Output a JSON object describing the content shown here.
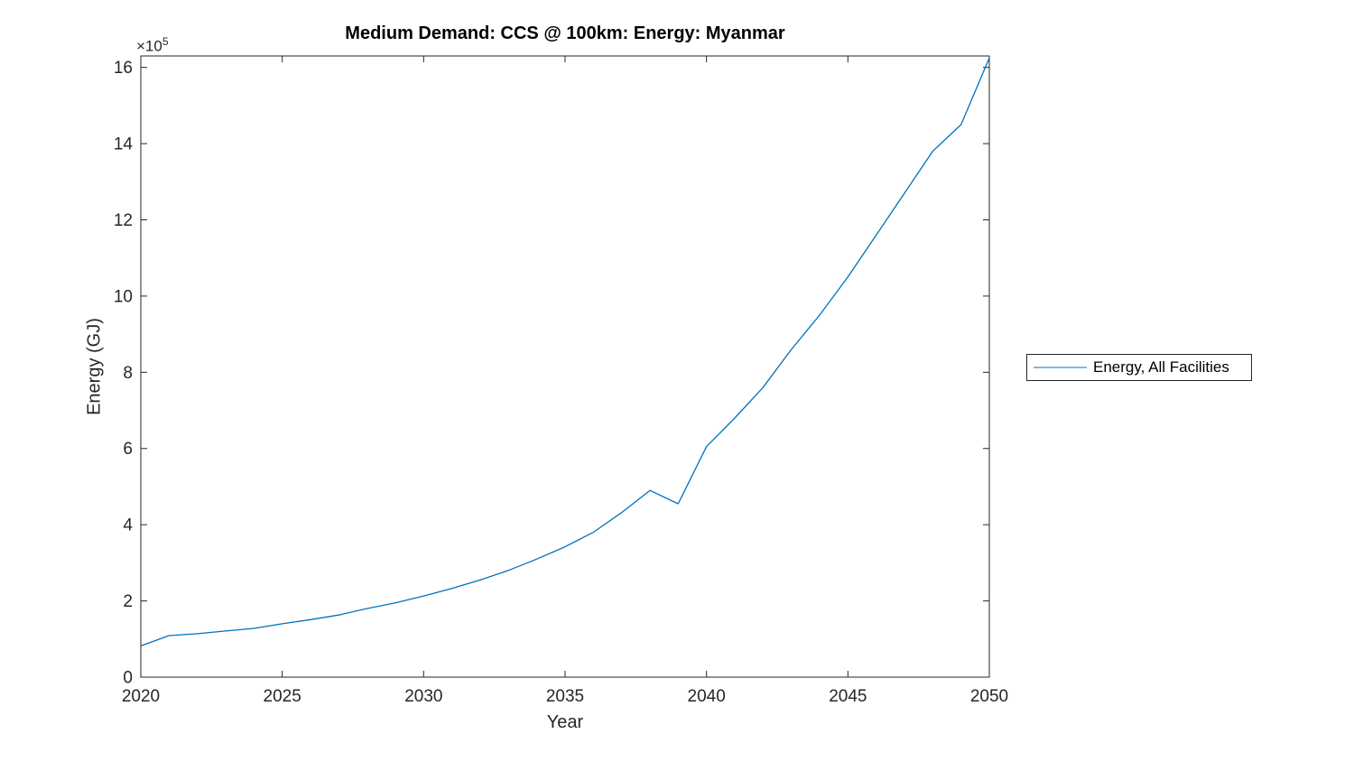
{
  "figure": {
    "title": "Medium Demand: CCS @ 100km: Energy: Myanmar",
    "xlabel": "Year",
    "ylabel": "Energy (GJ)",
    "y_multiplier_base": "×10",
    "y_multiplier_exponent": "5",
    "legend": {
      "entries": [
        {
          "label": "Energy, All Facilities",
          "color": "#0072BD"
        }
      ],
      "position": "right-outside"
    },
    "colors": {
      "line": "#0072BD",
      "axis": "#262626",
      "title_text": "#000000",
      "background": "#ffffff"
    }
  },
  "chart_data": {
    "type": "line",
    "title": "Medium Demand: CCS @ 100km: Energy: Myanmar",
    "xlabel": "Year",
    "ylabel": "Energy (GJ)",
    "y_unit_multiplier": 100000,
    "x_ticks": [
      2020,
      2025,
      2030,
      2035,
      2040,
      2045,
      2050
    ],
    "y_ticks": [
      0,
      2,
      4,
      6,
      8,
      10,
      12,
      14,
      16
    ],
    "xlim": [
      2020,
      2050
    ],
    "ylim_1e5": [
      0,
      16.3
    ],
    "grid": false,
    "legend_position": "right-outside",
    "series": [
      {
        "name": "Energy, All Facilities",
        "color": "#0072BD",
        "x": [
          2020,
          2021,
          2022,
          2023,
          2024,
          2025,
          2026,
          2027,
          2028,
          2029,
          2030,
          2031,
          2032,
          2033,
          2034,
          2035,
          2036,
          2037,
          2038,
          2039,
          2040,
          2041,
          2042,
          2043,
          2044,
          2045,
          2046,
          2047,
          2048,
          2049,
          2050
        ],
        "y_1e5": [
          0.82,
          1.09,
          1.14,
          1.21,
          1.28,
          1.4,
          1.51,
          1.63,
          1.8,
          1.95,
          2.13,
          2.33,
          2.55,
          2.8,
          3.1,
          3.42,
          3.8,
          4.32,
          4.9,
          4.55,
          6.05,
          6.8,
          7.6,
          8.6,
          9.5,
          10.5,
          11.6,
          12.7,
          13.8,
          14.5,
          16.25
        ]
      }
    ]
  }
}
